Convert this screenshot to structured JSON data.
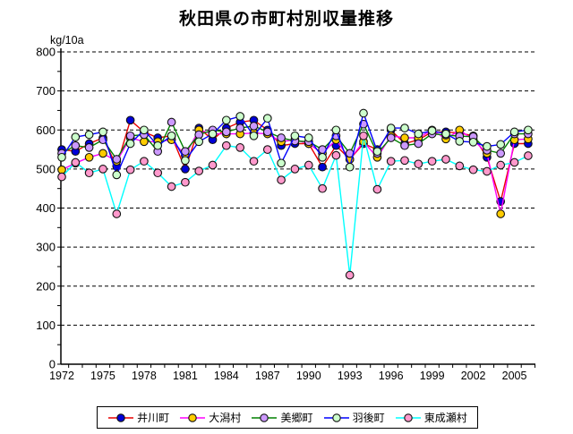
{
  "chart_data": {
    "type": "line",
    "title": "秋田県の市町村別収量推移",
    "y_unit": "kg/10a",
    "ylim": [
      0,
      800
    ],
    "y_tick_step": 100,
    "grid": "horizontal-dashed",
    "legend_position": "bottom",
    "x": [
      1972,
      1973,
      1974,
      1975,
      1976,
      1977,
      1978,
      1979,
      1980,
      1981,
      1982,
      1983,
      1984,
      1985,
      1986,
      1987,
      1988,
      1989,
      1990,
      1991,
      1992,
      1993,
      1994,
      1995,
      1996,
      1997,
      1998,
      1999,
      2000,
      2001,
      2002,
      2003,
      2004,
      2005,
      2006
    ],
    "x_tick_labels": [
      "1972",
      "1975",
      "1978",
      "1981",
      "1984",
      "1987",
      "1990",
      "1993",
      "1996",
      "1999",
      "2002",
      "2005"
    ],
    "y_tick_labels": [
      "0",
      "100",
      "200",
      "300",
      "400",
      "500",
      "600",
      "700",
      "800"
    ],
    "series": [
      {
        "id": "ikawa",
        "name": "井川町",
        "line_color": "#e80000",
        "marker_color": "#0000d8",
        "values": [
          550,
          545,
          565,
          580,
          507,
          625,
          595,
          580,
          585,
          500,
          605,
          575,
          605,
          620,
          625,
          600,
          560,
          565,
          565,
          505,
          560,
          525,
          565,
          550,
          600,
          565,
          575,
          595,
          595,
          592,
          585,
          530,
          417,
          565,
          565
        ]
      },
      {
        "id": "ogata",
        "name": "大潟村",
        "line_color": "#ff00ff",
        "marker_color": "#ffcc00",
        "values": [
          498,
          515,
          530,
          540,
          520,
          580,
          570,
          570,
          575,
          535,
          600,
          590,
          590,
          590,
          592,
          590,
          570,
          575,
          565,
          540,
          575,
          525,
          570,
          530,
          585,
          580,
          580,
          600,
          577,
          600,
          575,
          540,
          385,
          575,
          577
        ]
      },
      {
        "id": "misato",
        "name": "美郷町",
        "line_color": "#008000",
        "marker_color": "#cc99ff",
        "values": [
          540,
          560,
          555,
          575,
          525,
          585,
          588,
          545,
          620,
          545,
          588,
          600,
          595,
          605,
          610,
          595,
          580,
          572,
          570,
          550,
          585,
          540,
          615,
          540,
          580,
          560,
          565,
          590,
          587,
          584,
          583,
          548,
          540,
          590,
          590
        ]
      },
      {
        "id": "ugo",
        "name": "羽後町",
        "line_color": "#0000ff",
        "marker_color": "#ccffcc",
        "values": [
          530,
          582,
          588,
          595,
          485,
          565,
          600,
          560,
          585,
          522,
          570,
          590,
          625,
          635,
          585,
          630,
          515,
          585,
          580,
          530,
          600,
          505,
          643,
          545,
          605,
          605,
          590,
          598,
          590,
          571,
          569,
          558,
          563,
          595,
          600
        ]
      },
      {
        "id": "higashinaruse",
        "name": "東成瀬村",
        "line_color": "#00ffff",
        "marker_color": "#ff99cc",
        "values": [
          480,
          517,
          490,
          500,
          385,
          498,
          520,
          490,
          455,
          466,
          495,
          510,
          560,
          555,
          520,
          550,
          472,
          500,
          510,
          450,
          535,
          228,
          585,
          448,
          520,
          522,
          513,
          520,
          525,
          508,
          498,
          494,
          510,
          517,
          534
        ]
      }
    ]
  }
}
